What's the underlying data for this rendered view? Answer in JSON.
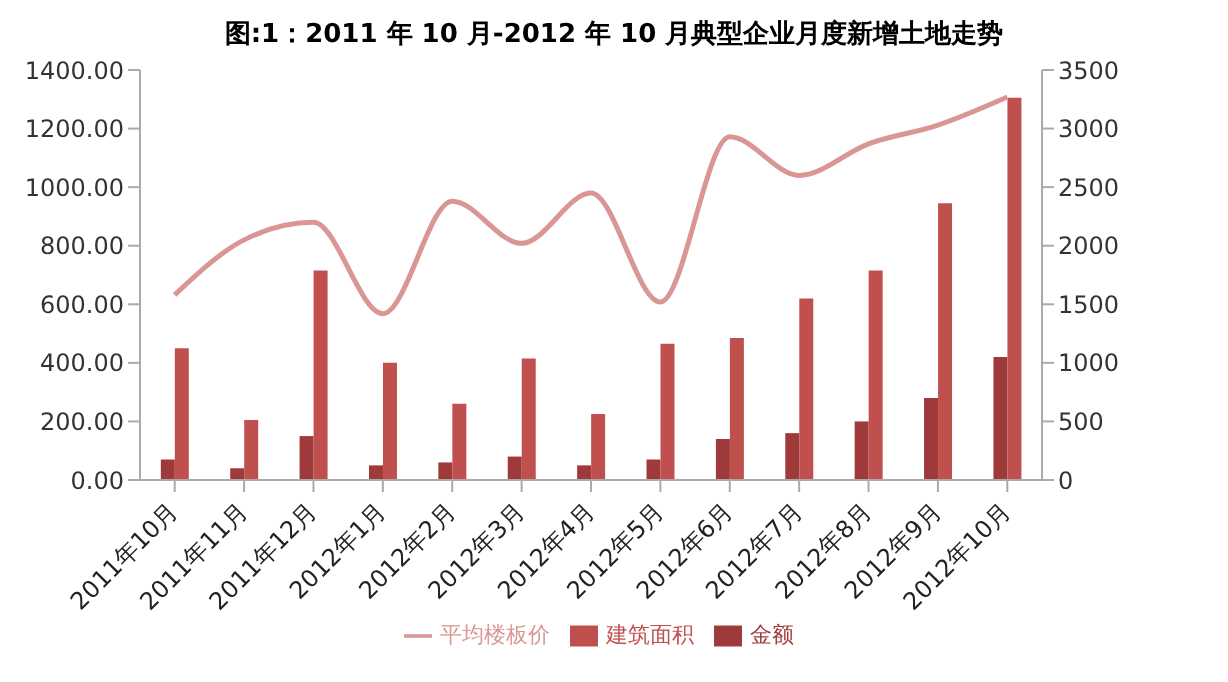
{
  "chart_data": {
    "type": "bar",
    "title": "图:1：2011 年 10 月-2012 年 10 月典型企业月度新增土地走势",
    "categories": [
      "2011年10月",
      "2011年11月",
      "2011年12月",
      "2012年1月",
      "2012年2月",
      "2012年3月",
      "2012年4月",
      "2012年5月",
      "2012年6月",
      "2012年7月",
      "2012年8月",
      "2012年9月",
      "2012年10月"
    ],
    "series": [
      {
        "name": "金额",
        "color": "#9e3a3a",
        "values": [
          70,
          40,
          150,
          50,
          60,
          80,
          50,
          70,
          140,
          160,
          200,
          280,
          420
        ]
      },
      {
        "name": "建筑面积",
        "color": "#c0504d",
        "values": [
          450,
          205,
          715,
          400,
          260,
          415,
          225,
          465,
          485,
          620,
          715,
          945,
          1305
        ]
      },
      {
        "name": "平均楼板价",
        "type": "line",
        "axis": "y2",
        "color": "#d99694",
        "values": [
          1580,
          2050,
          2200,
          1420,
          2380,
          2020,
          2450,
          1520,
          2930,
          2600,
          2870,
          3030,
          3270
        ]
      }
    ],
    "ylim": [
      0,
      1400
    ],
    "yticks": [
      {
        "value": 0,
        "label": "0.00"
      },
      {
        "value": 200,
        "label": "200.00"
      },
      {
        "value": 400,
        "label": "400.00"
      },
      {
        "value": 600,
        "label": "600.00"
      },
      {
        "value": 800,
        "label": "800.00"
      },
      {
        "value": 1000,
        "label": "1000.00"
      },
      {
        "value": 1200,
        "label": "1200.00"
      },
      {
        "value": 1400,
        "label": "1400.00"
      }
    ],
    "y2lim": [
      0,
      3500
    ],
    "y2ticks": [
      0,
      500,
      1000,
      1500,
      2000,
      2500,
      3000,
      3500
    ],
    "legend": "bottom",
    "grid": false,
    "marker": "none"
  }
}
